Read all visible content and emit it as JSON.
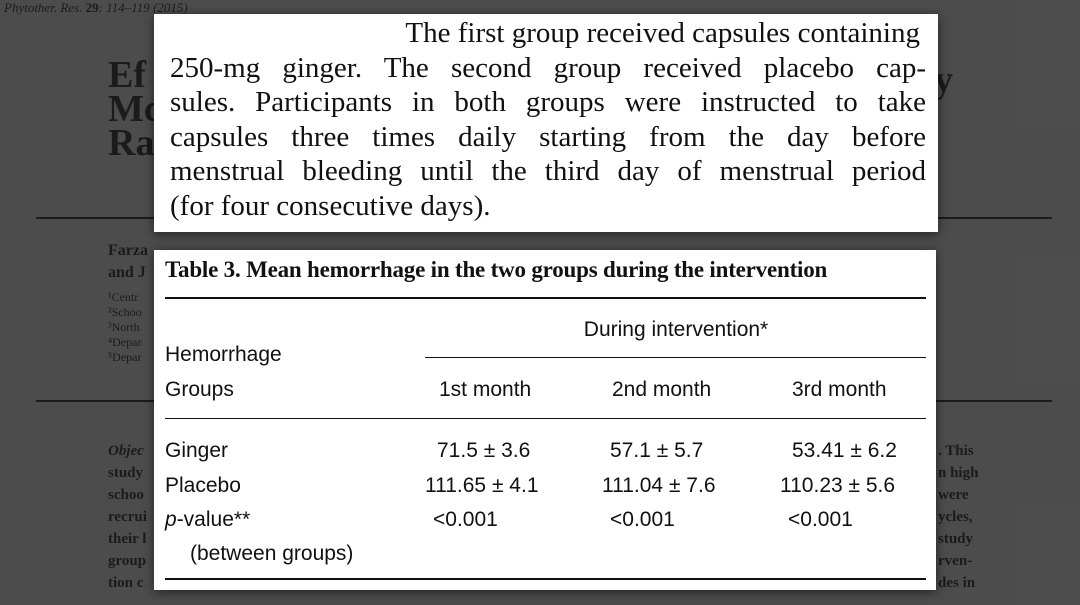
{
  "background_paper": {
    "journal": "Phytother. Res.",
    "volume": "29",
    "pages": ": 114–119 (2015)",
    "title_fragments": [
      "Ef",
      "Mc",
      "Ra"
    ],
    "title_right_fragment": "y",
    "authors_fragments": [
      "Farza",
      "and J"
    ],
    "affiliations_fragments": [
      "¹Centr",
      "²Schoo",
      "³North",
      "⁴Depar",
      "⁵Depar"
    ],
    "abstract_left_fragments": [
      "Objec",
      "study",
      "schoo",
      "recrui",
      "their l",
      "group",
      "tion c"
    ],
    "abstract_right_fragments": [
      ". This",
      "n high",
      "were",
      "ycles,",
      "study",
      "rven-",
      "des in"
    ]
  },
  "excerpt": {
    "lines": [
      "The first group received capsules containing",
      "250-mg ginger. The second group received placebo cap-",
      "sules. Participants in both groups were instructed to take",
      "capsules three times daily starting from the day before",
      "menstrual bleeding until the third day of menstrual period",
      "(for four consecutive days)."
    ]
  },
  "table": {
    "caption": "Table 3.  Mean hemorrhage in the two groups during the intervention",
    "group_header": "During intervention*",
    "row_header_line1": "Hemorrhage",
    "row_header_line2": "Groups",
    "columns": [
      "1st month",
      "2nd month",
      "3rd month"
    ],
    "rows": [
      {
        "label": "Ginger",
        "values": [
          "71.5 ± 3.6",
          "57.1 ± 5.7",
          "53.41 ± 6.2"
        ]
      },
      {
        "label": "Placebo",
        "values": [
          "111.65 ± 4.1",
          "111.04 ± 7.6",
          "110.23 ± 5.6"
        ]
      },
      {
        "label_italic": "p",
        "label_rest": "-value**",
        "values": [
          "<0.001",
          "<0.001",
          "<0.001"
        ]
      }
    ],
    "pvalue_note": "(between groups)"
  }
}
